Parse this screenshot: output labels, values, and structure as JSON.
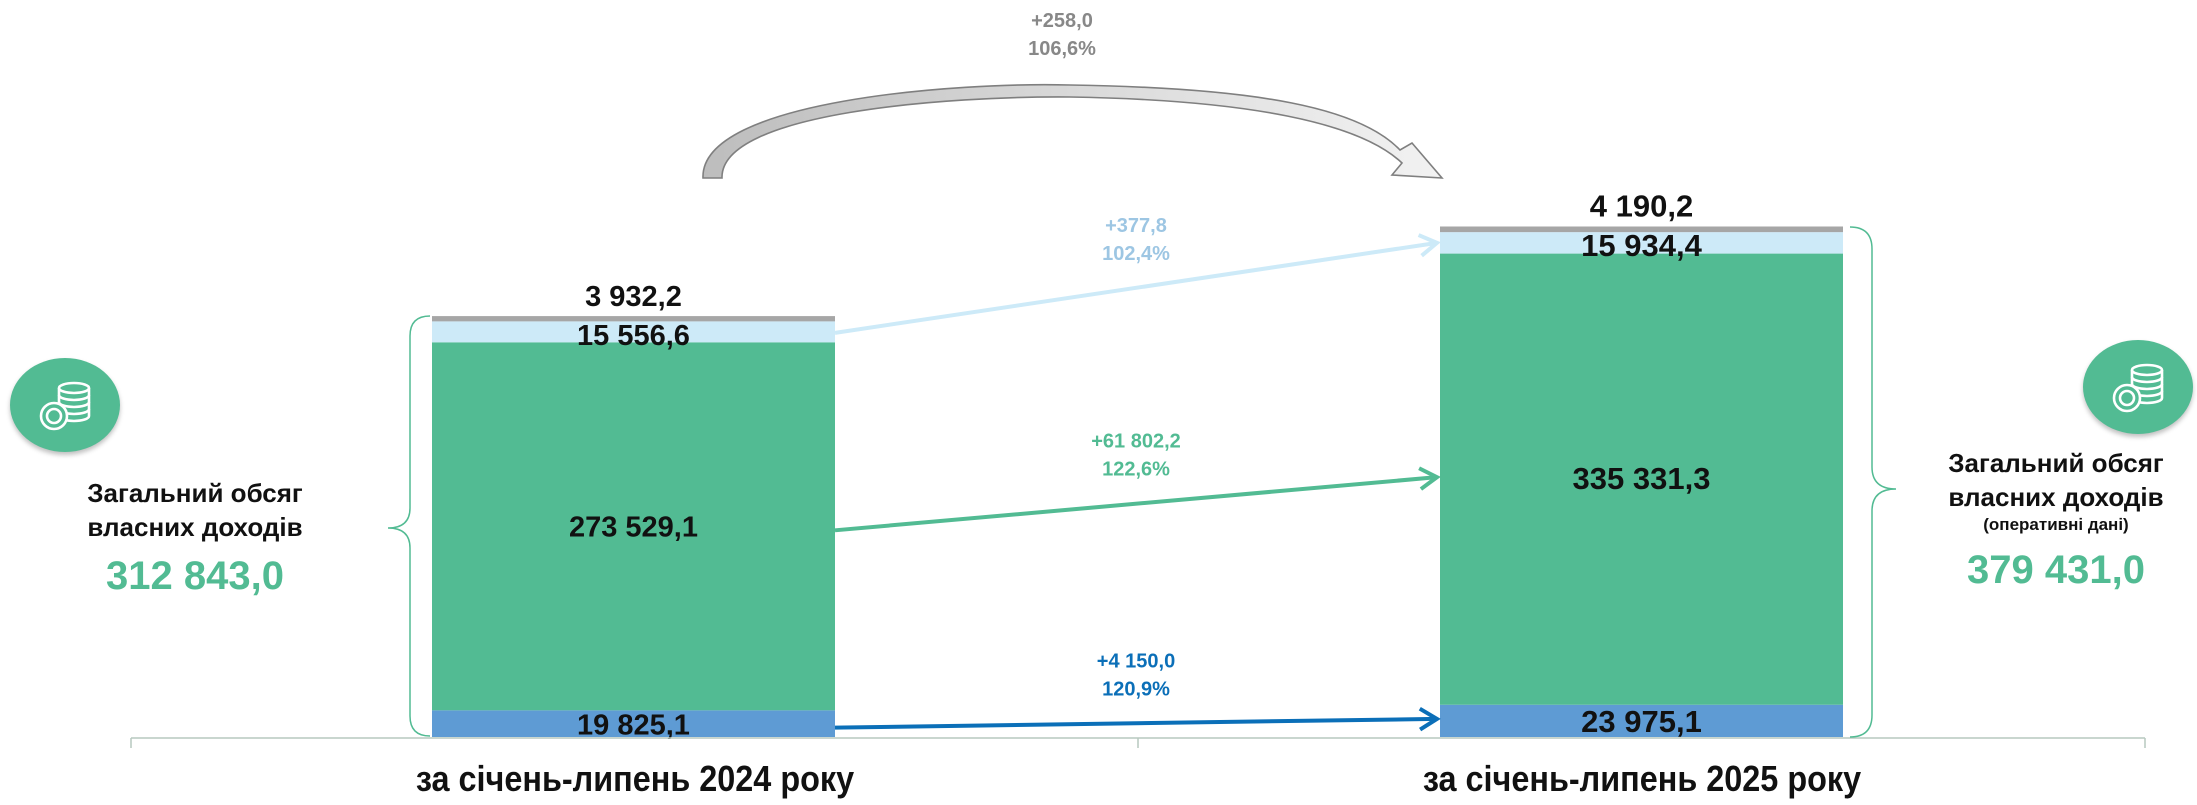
{
  "colors": {
    "gray": "#a6a6a6",
    "light_blue": "#cdeaf8",
    "green": "#52bb93",
    "blue": "#5e9bd4",
    "arrow_light_blue": "#cdeaf8",
    "arrow_green": "#52bb93",
    "arrow_blue": "#0b6fb8",
    "change_light_blue": "#9dc6e3",
    "change_green": "#52bb93",
    "change_blue": "#0b6fb8",
    "change_total": "#888888"
  },
  "icons": [
    "coins-icon",
    "coins-icon"
  ],
  "left_panel": {
    "title_line1": "Загальний обсяг",
    "title_line2": "власних доходів",
    "total": "312 843,0"
  },
  "right_panel": {
    "title_line1": "Загальний обсяг",
    "title_line2": "власних доходів",
    "note": "(оперативні дані)",
    "total": "379 431,0"
  },
  "total_change": {
    "delta": "+258,0",
    "percent": "106,6%"
  },
  "chart_data": {
    "type": "bar",
    "stacked": true,
    "categories": [
      "за січень-липень 2024 року",
      "за січень-липень 2025 року"
    ],
    "series": [
      {
        "color": "#5e9bd4",
        "values": [
          19825.1,
          23975.1
        ],
        "labels": [
          "19 825,1",
          "23 975,1"
        ],
        "change": {
          "delta": "+4 150,0",
          "percent": "120,9%"
        }
      },
      {
        "color": "#52bb93",
        "values": [
          273529.1,
          335331.3
        ],
        "labels": [
          "273 529,1",
          "335 331,3"
        ],
        "change": {
          "delta": "+61 802,2",
          "percent": "122,6%"
        }
      },
      {
        "color": "#cdeaf8",
        "values": [
          15556.6,
          15934.4
        ],
        "labels": [
          "15 556,6",
          "15 934,4"
        ],
        "change": {
          "delta": "+377,8",
          "percent": "102,4%"
        }
      },
      {
        "color": "#a6a6a6",
        "values": [
          3932.2,
          4190.2
        ],
        "labels": [
          "3 932,2",
          "4 190,2"
        ]
      }
    ],
    "totals": [
      312843.0,
      379431.0
    ],
    "grid": false,
    "legend": "none"
  }
}
